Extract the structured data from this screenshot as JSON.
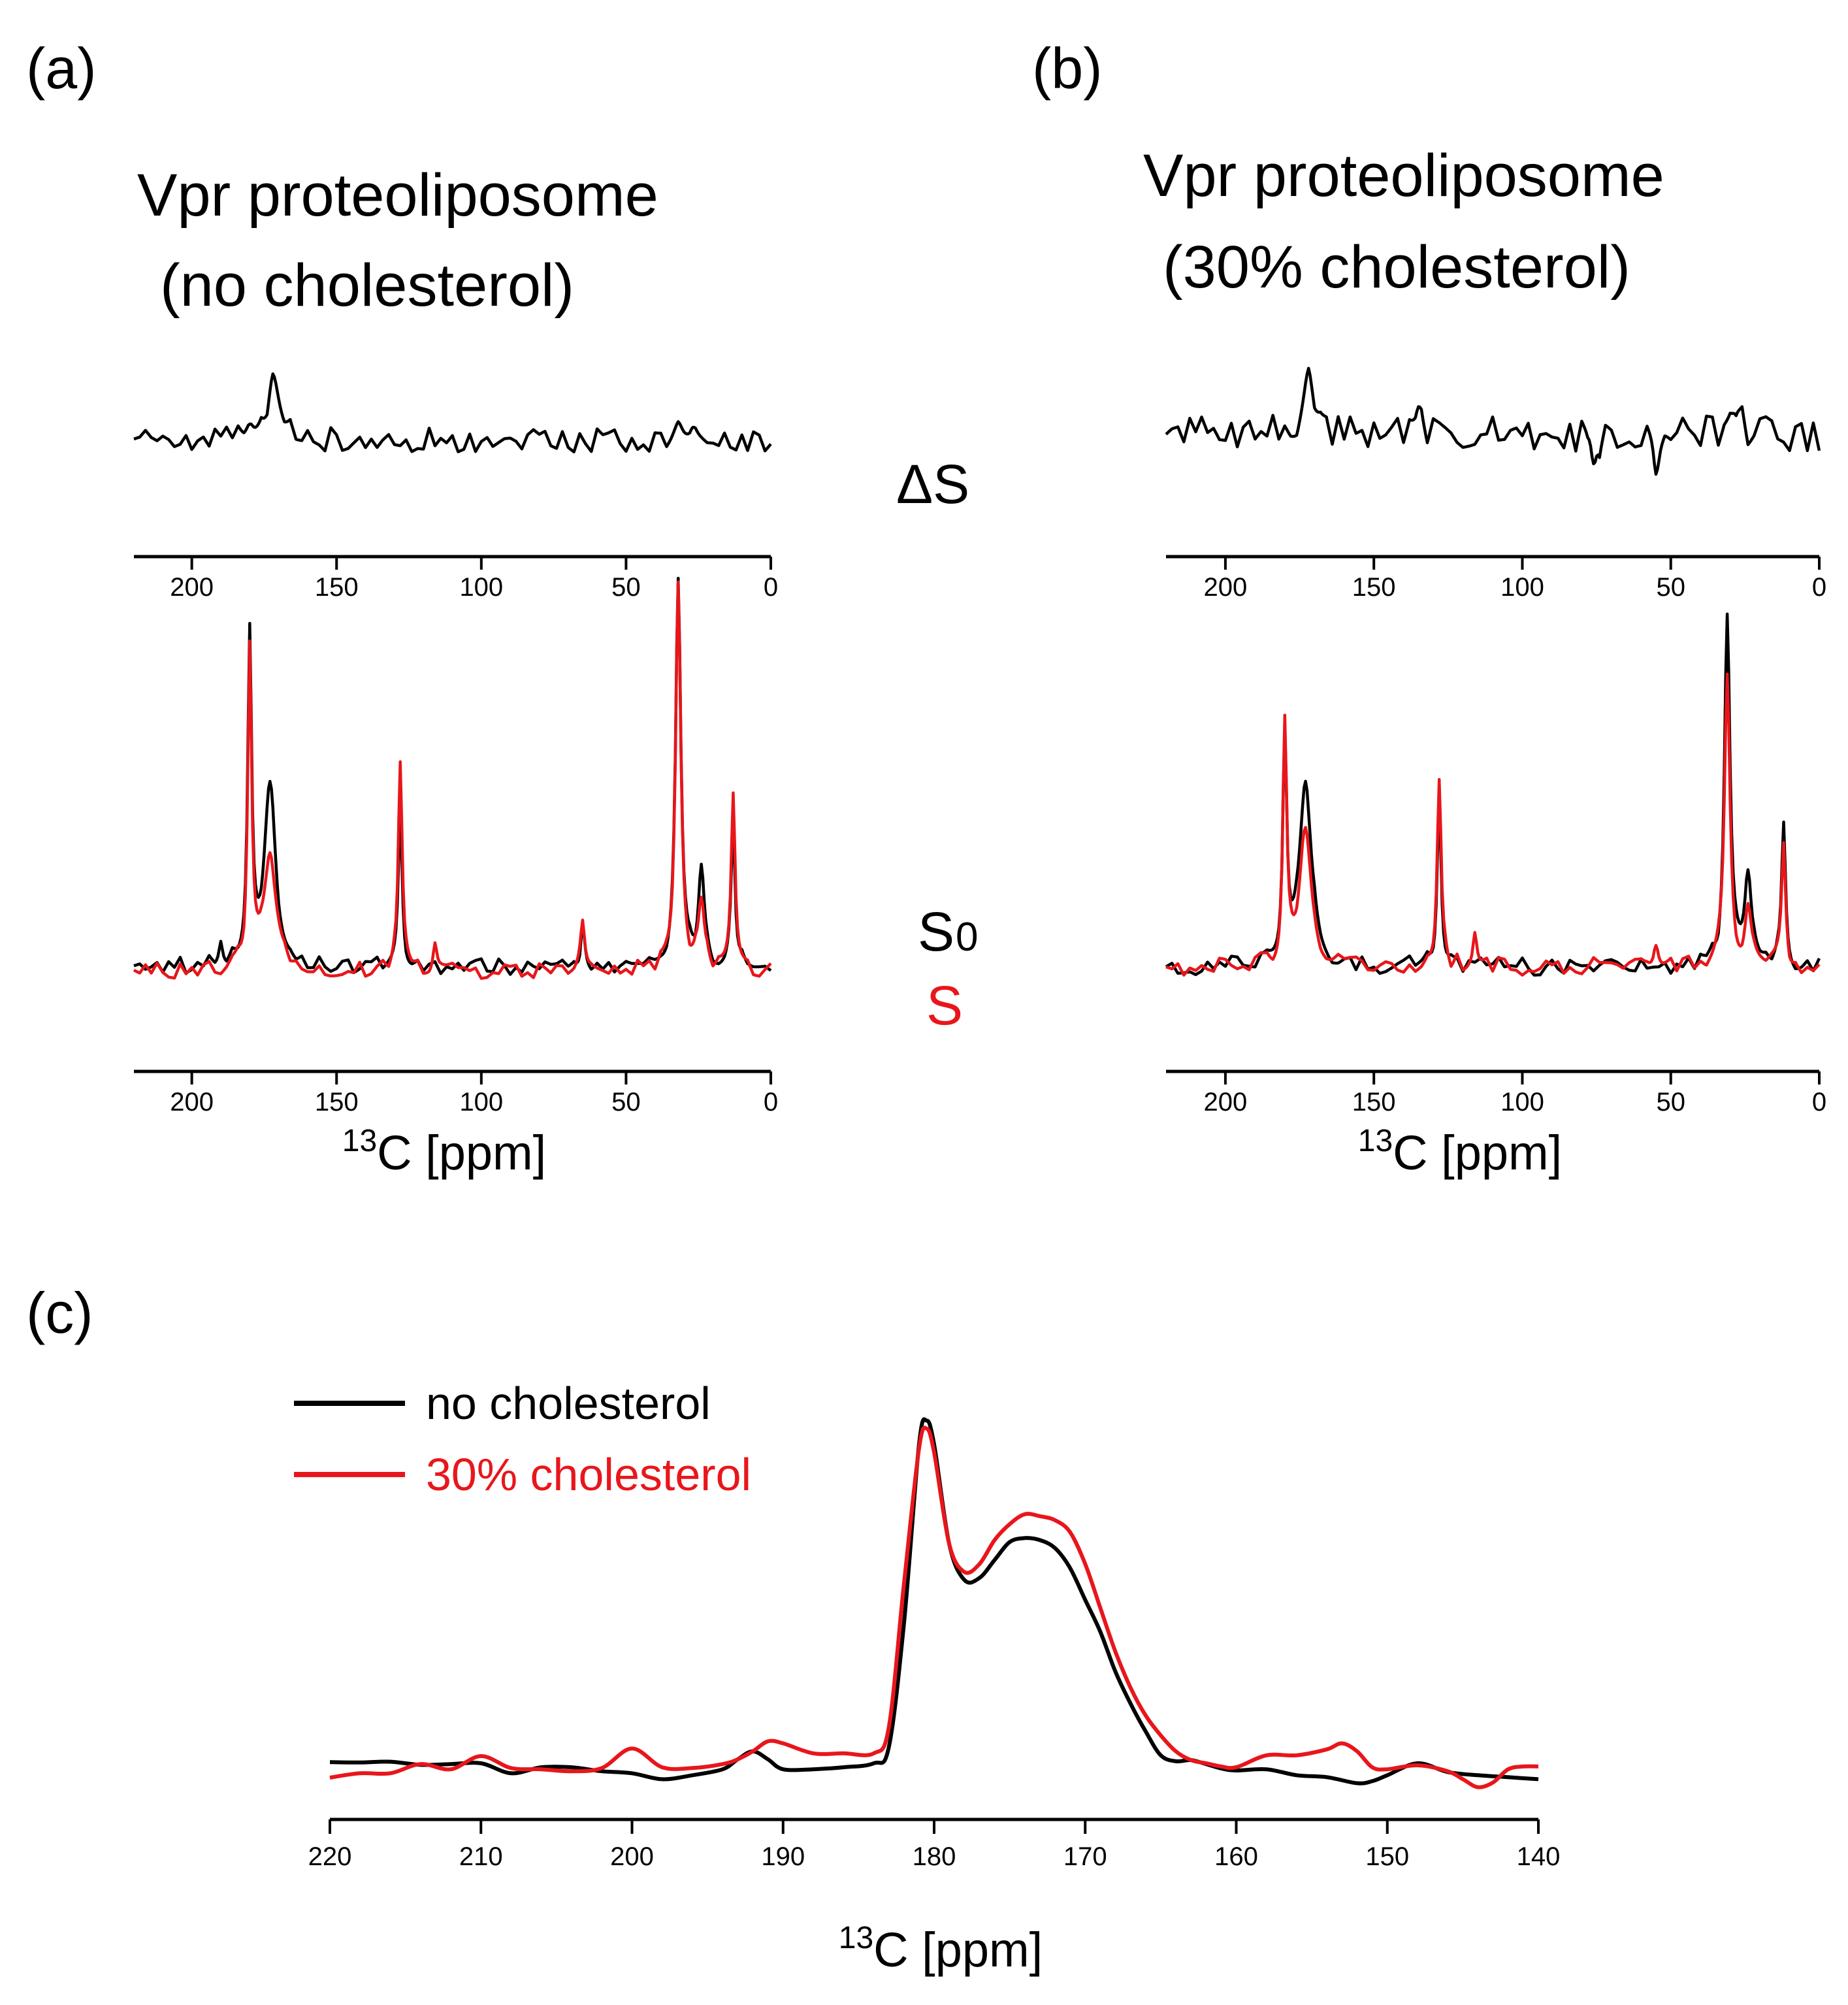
{
  "colors": {
    "black_series": "#000000",
    "red_series": "#e8161b",
    "axis": "#000000"
  },
  "panels": {
    "a": {
      "letter": "(a)",
      "title_line1": "Vpr proteoliposome",
      "title_line2": "(no cholesterol)"
    },
    "b": {
      "letter": "(b)",
      "title_line1": "Vpr proteoliposome",
      "title_line2": "(30% cholesterol)"
    },
    "c": {
      "letter": "(c)"
    }
  },
  "labels": {
    "delta_s": "ΔS",
    "s0_main": "S",
    "s0_sub": "0",
    "s": "S"
  },
  "chart_data": [
    {
      "id": "a-top",
      "type": "line",
      "panel": "a",
      "trace": "ΔS",
      "xlabel": "",
      "x_reversed": true,
      "xlim": [
        220,
        0
      ],
      "xticks": [
        200,
        150,
        100,
        50,
        0
      ],
      "ylim": [
        -1,
        1
      ],
      "series": [
        {
          "color": "black",
          "baseline": -0.1,
          "noise": 0.16,
          "seed": 11,
          "peaks": [
            [
              172,
              0.75,
              2.6
            ],
            [
              180,
              0.25,
              1.5
            ],
            [
              32,
              0.18,
              2.0
            ],
            [
              27,
              0.14,
              1.5
            ]
          ]
        }
      ]
    },
    {
      "id": "a-bottom",
      "type": "line",
      "panel": "a",
      "trace": "S0 / S",
      "xlabel_main": "13",
      "xlabel_rest": "C [ppm]",
      "x_reversed": true,
      "xlim": [
        220,
        0
      ],
      "xticks": [
        200,
        150,
        100,
        50,
        0
      ],
      "ylim": [
        0,
        1
      ],
      "series": [
        {
          "color": "black",
          "baseline": 0.08,
          "noise": 0.02,
          "seed": 21,
          "peaks": [
            [
              180,
              0.78,
              0.8
            ],
            [
              173,
              0.43,
              2.4
            ],
            [
              128,
              0.38,
              0.8
            ],
            [
              65,
              0.12,
              0.8
            ],
            [
              32,
              0.94,
              1.1
            ],
            [
              24,
              0.22,
              1.2
            ],
            [
              13,
              0.35,
              0.8
            ],
            [
              190,
              0.05,
              0.7
            ]
          ]
        },
        {
          "color": "red",
          "baseline": 0.07,
          "noise": 0.02,
          "seed": 22,
          "peaks": [
            [
              180,
              0.76,
              0.8
            ],
            [
              173,
              0.28,
              2.4
            ],
            [
              128,
              0.52,
              0.8
            ],
            [
              65,
              0.11,
              0.8
            ],
            [
              32,
              0.93,
              1.1
            ],
            [
              24,
              0.18,
              1.2
            ],
            [
              13,
              0.42,
              0.8
            ],
            [
              116,
              0.07,
              0.8
            ]
          ]
        }
      ]
    },
    {
      "id": "b-top",
      "type": "line",
      "panel": "b",
      "trace": "ΔS",
      "xlabel": "",
      "x_reversed": true,
      "xlim": [
        220,
        0
      ],
      "xticks": [
        200,
        150,
        100,
        50,
        0
      ],
      "ylim": [
        -1,
        1
      ],
      "series": [
        {
          "color": "black",
          "baseline": 0.0,
          "noise": 0.22,
          "seed": 31,
          "peaks": [
            [
              172,
              0.6,
              2.4
            ],
            [
              135,
              0.2,
              1.2
            ],
            [
              28,
              0.25,
              2.2
            ],
            [
              76,
              -0.55,
              1.0
            ],
            [
              55,
              -0.45,
              1.0
            ]
          ]
        }
      ]
    },
    {
      "id": "b-bottom",
      "type": "line",
      "panel": "b",
      "trace": "S0 / S",
      "xlabel_main": "13",
      "xlabel_rest": "C [ppm]",
      "x_reversed": true,
      "xlim": [
        220,
        0
      ],
      "xticks": [
        200,
        150,
        100,
        50,
        0
      ],
      "ylim": [
        0,
        1
      ],
      "series": [
        {
          "color": "black",
          "baseline": 0.09,
          "noise": 0.025,
          "seed": 41,
          "peaks": [
            [
              180,
              0.62,
              0.8
            ],
            [
              173,
              0.52,
              2.4
            ],
            [
              128,
              0.48,
              0.8
            ],
            [
              31,
              0.95,
              1.1
            ],
            [
              24,
              0.25,
              1.3
            ],
            [
              12,
              0.4,
              0.8
            ]
          ]
        },
        {
          "color": "red",
          "baseline": 0.09,
          "noise": 0.025,
          "seed": 42,
          "peaks": [
            [
              180,
              0.66,
              0.8
            ],
            [
              173,
              0.36,
              2.4
            ],
            [
              128,
              0.5,
              0.8
            ],
            [
              116,
              0.1,
              0.8
            ],
            [
              55,
              0.08,
              1.2
            ],
            [
              31,
              0.78,
              1.1
            ],
            [
              24,
              0.15,
              1.3
            ],
            [
              12,
              0.32,
              0.8
            ]
          ]
        }
      ]
    },
    {
      "id": "c",
      "type": "line",
      "panel": "c",
      "xlabel_main": "13",
      "xlabel_rest": "C [ppm]",
      "x_reversed": true,
      "xlim": [
        220,
        140
      ],
      "xticks": [
        220,
        210,
        200,
        190,
        180,
        170,
        160,
        150,
        140
      ],
      "ylim": [
        0,
        1
      ],
      "legend_position": "top-left",
      "series": [
        {
          "name": "no cholesterol",
          "color": "black",
          "points": [
            [
              220,
              0.103
            ],
            [
              218,
              0.102
            ],
            [
              216,
              0.104
            ],
            [
              214,
              0.096
            ],
            [
              212,
              0.098
            ],
            [
              210,
              0.1
            ],
            [
              208,
              0.075
            ],
            [
              206,
              0.09
            ],
            [
              204,
              0.09
            ],
            [
              202,
              0.08
            ],
            [
              200,
              0.075
            ],
            [
              198,
              0.06
            ],
            [
              196,
              0.07
            ],
            [
              194,
              0.085
            ],
            [
              193,
              0.11
            ],
            [
              192,
              0.13
            ],
            [
              191,
              0.11
            ],
            [
              190,
              0.085
            ],
            [
              188,
              0.085
            ],
            [
              186,
              0.09
            ],
            [
              184,
              0.1
            ],
            [
              183,
              0.14
            ],
            [
              182,
              0.45
            ],
            [
              181,
              0.9
            ],
            [
              180.5,
              0.96
            ],
            [
              180,
              0.9
            ],
            [
              179,
              0.65
            ],
            [
              178,
              0.56
            ],
            [
              177,
              0.565
            ],
            [
              176,
              0.61
            ],
            [
              175,
              0.655
            ],
            [
              174,
              0.665
            ],
            [
              173,
              0.66
            ],
            [
              172,
              0.64
            ],
            [
              171,
              0.59
            ],
            [
              170,
              0.51
            ],
            [
              169,
              0.43
            ],
            [
              168,
              0.33
            ],
            [
              167,
              0.25
            ],
            [
              166,
              0.18
            ],
            [
              165,
              0.12
            ],
            [
              164,
              0.105
            ],
            [
              163,
              0.108
            ],
            [
              162,
              0.098
            ],
            [
              161,
              0.087
            ],
            [
              160,
              0.082
            ],
            [
              158,
              0.085
            ],
            [
              156,
              0.07
            ],
            [
              154,
              0.065
            ],
            [
              152,
              0.05
            ],
            [
              151,
              0.055
            ],
            [
              150,
              0.07
            ],
            [
              148,
              0.1
            ],
            [
              146,
              0.078
            ],
            [
              144,
              0.07
            ],
            [
              142,
              0.065
            ],
            [
              140,
              0.06
            ]
          ]
        },
        {
          "name": "30% cholesterol",
          "color": "red",
          "points": [
            [
              220,
              0.064
            ],
            [
              218,
              0.075
            ],
            [
              216,
              0.075
            ],
            [
              214,
              0.098
            ],
            [
              212,
              0.085
            ],
            [
              210,
              0.118
            ],
            [
              208,
              0.088
            ],
            [
              206,
              0.085
            ],
            [
              204,
              0.08
            ],
            [
              202,
              0.088
            ],
            [
              200,
              0.137
            ],
            [
              198,
              0.09
            ],
            [
              196,
              0.088
            ],
            [
              194,
              0.098
            ],
            [
              193,
              0.11
            ],
            [
              192,
              0.13
            ],
            [
              191,
              0.155
            ],
            [
              190,
              0.15
            ],
            [
              188,
              0.125
            ],
            [
              186,
              0.125
            ],
            [
              184,
              0.125
            ],
            [
              183,
              0.19
            ],
            [
              182,
              0.55
            ],
            [
              181,
              0.89
            ],
            [
              180.5,
              0.94
            ],
            [
              180,
              0.88
            ],
            [
              179,
              0.65
            ],
            [
              178,
              0.58
            ],
            [
              177,
              0.6
            ],
            [
              176,
              0.66
            ],
            [
              175,
              0.7
            ],
            [
              174,
              0.725
            ],
            [
              173,
              0.72
            ],
            [
              172,
              0.71
            ],
            [
              171,
              0.68
            ],
            [
              170,
              0.6
            ],
            [
              169,
              0.49
            ],
            [
              168,
              0.38
            ],
            [
              167,
              0.29
            ],
            [
              166,
              0.22
            ],
            [
              165,
              0.17
            ],
            [
              164,
              0.13
            ],
            [
              163,
              0.108
            ],
            [
              162,
              0.1
            ],
            [
              161,
              0.092
            ],
            [
              160,
              0.09
            ],
            [
              158,
              0.12
            ],
            [
              156,
              0.12
            ],
            [
              154,
              0.135
            ],
            [
              153,
              0.15
            ],
            [
              152,
              0.13
            ],
            [
              151,
              0.09
            ],
            [
              150,
              0.085
            ],
            [
              148,
              0.095
            ],
            [
              146,
              0.08
            ],
            [
              145,
              0.06
            ],
            [
              144,
              0.04
            ],
            [
              143,
              0.052
            ],
            [
              142,
              0.085
            ],
            [
              141,
              0.092
            ],
            [
              140,
              0.092
            ]
          ]
        }
      ]
    }
  ]
}
